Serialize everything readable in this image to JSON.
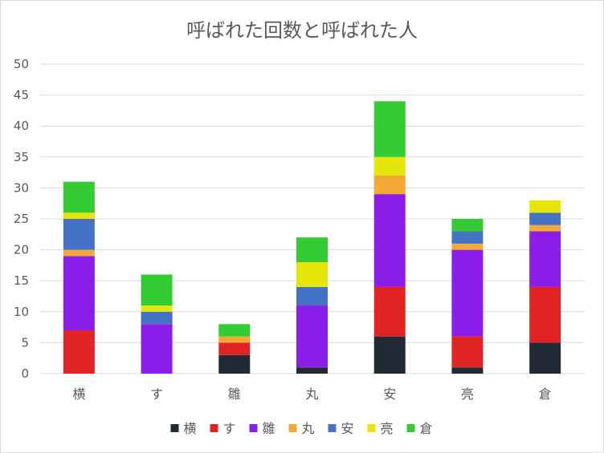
{
  "chart_data": {
    "type": "bar",
    "stacked": true,
    "title": "呼ばれた回数と呼ばれた人",
    "xlabel": "",
    "ylabel": "",
    "ylim": [
      0,
      50
    ],
    "yticks": [
      0,
      5,
      10,
      15,
      20,
      25,
      30,
      35,
      40,
      45,
      50
    ],
    "grid": true,
    "legend_position": "bottom",
    "categories": [
      "横",
      "す",
      "雛",
      "丸",
      "安",
      "亮",
      "倉"
    ],
    "series": [
      {
        "name": "横",
        "color": "#222a35",
        "values": [
          0,
          0,
          3,
          1,
          6,
          1,
          5
        ]
      },
      {
        "name": "す",
        "color": "#e02424",
        "values": [
          7,
          0,
          2,
          0,
          8,
          5,
          9
        ]
      },
      {
        "name": "雛",
        "color": "#8b1de8",
        "values": [
          12,
          8,
          0,
          10,
          15,
          14,
          9
        ]
      },
      {
        "name": "丸",
        "color": "#f4a935",
        "values": [
          1,
          0,
          1,
          0,
          3,
          1,
          1
        ]
      },
      {
        "name": "安",
        "color": "#4472c4",
        "values": [
          5,
          2,
          0,
          3,
          0,
          2,
          2
        ]
      },
      {
        "name": "亮",
        "color": "#e6e60b",
        "values": [
          1,
          1,
          0,
          4,
          3,
          0,
          2
        ]
      },
      {
        "name": "倉",
        "color": "#33cc33",
        "values": [
          5,
          5,
          2,
          4,
          9,
          2,
          0
        ]
      }
    ]
  }
}
